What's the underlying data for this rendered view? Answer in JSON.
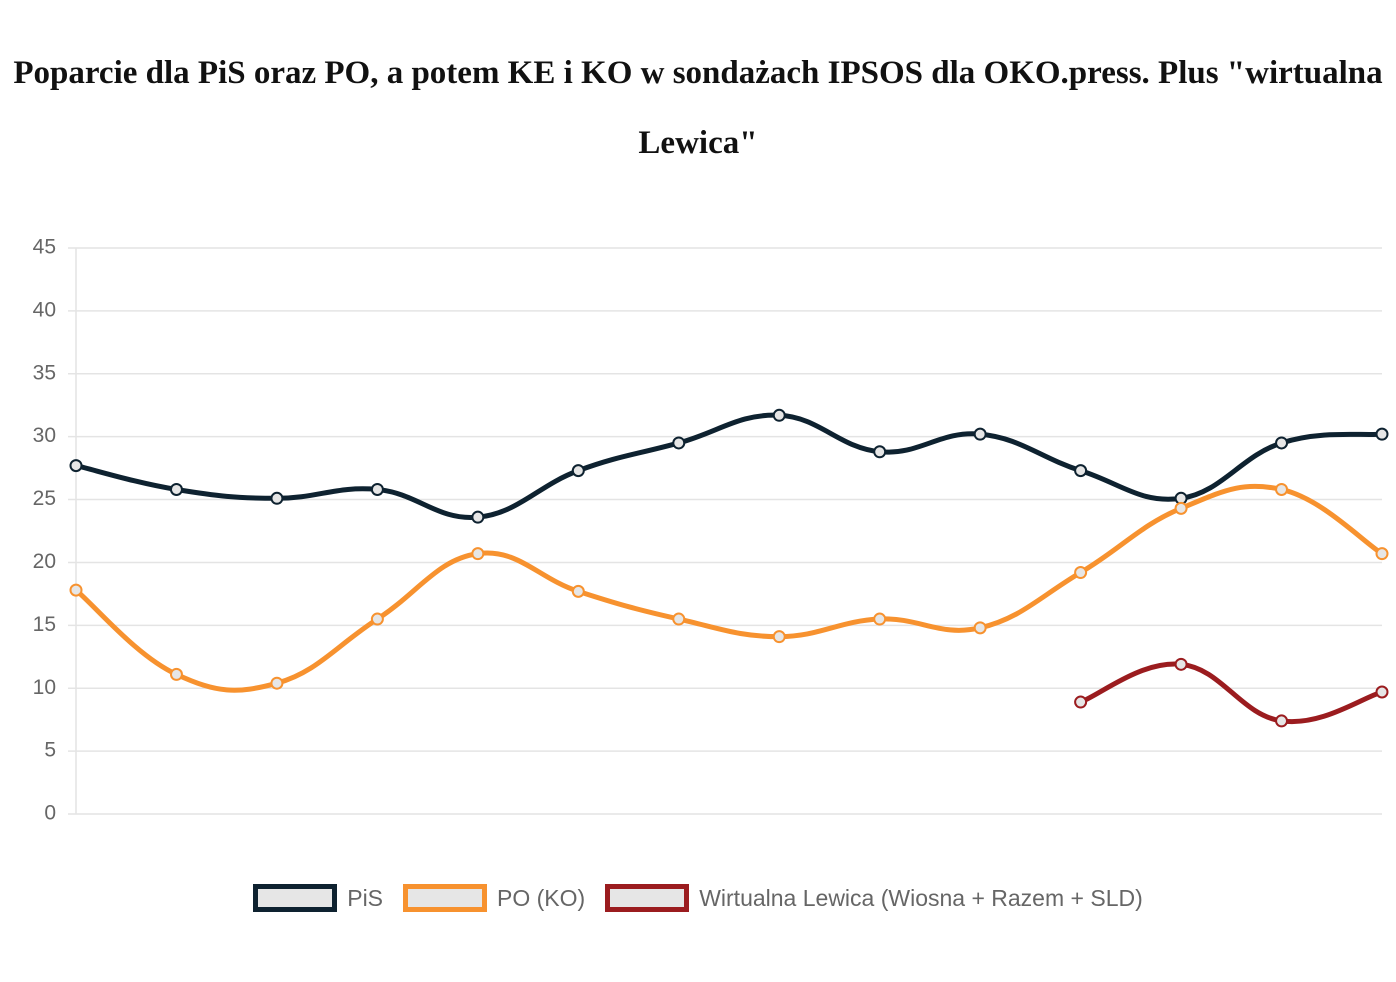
{
  "chart_data": {
    "type": "line",
    "title": "Poparcie dla PiS oraz PO, a potem KE i KO w sondażach IPSOS dla OKO.press. Plus \"wirtualna Lewica\"",
    "categories": [
      null,
      null,
      null,
      null,
      null,
      null,
      null,
      null,
      null,
      null,
      null,
      null,
      null,
      null
    ],
    "series": [
      {
        "name": "PiS",
        "color": "#0e2230",
        "values": [
          27.7,
          25.8,
          25.1,
          25.8,
          23.6,
          27.3,
          29.5,
          31.7,
          28.8,
          30.2,
          27.3,
          25.1,
          29.5,
          30.2
        ]
      },
      {
        "name": "PO (KO)",
        "color": "#f7922f",
        "values": [
          17.8,
          11.1,
          10.4,
          15.5,
          20.7,
          17.7,
          15.5,
          14.1,
          15.5,
          14.8,
          19.2,
          24.3,
          25.8,
          20.7
        ]
      },
      {
        "name": "Wirtualna Lewica (Wiosna + Razem + SLD)",
        "color": "#9b1c1f",
        "values": [
          null,
          null,
          null,
          null,
          null,
          null,
          null,
          null,
          null,
          null,
          8.9,
          11.9,
          7.4,
          9.7
        ]
      }
    ],
    "ylim": [
      0,
      45
    ],
    "yticks": [
      0,
      5,
      10,
      15,
      20,
      25,
      30,
      35,
      40,
      45
    ],
    "grid": true
  }
}
